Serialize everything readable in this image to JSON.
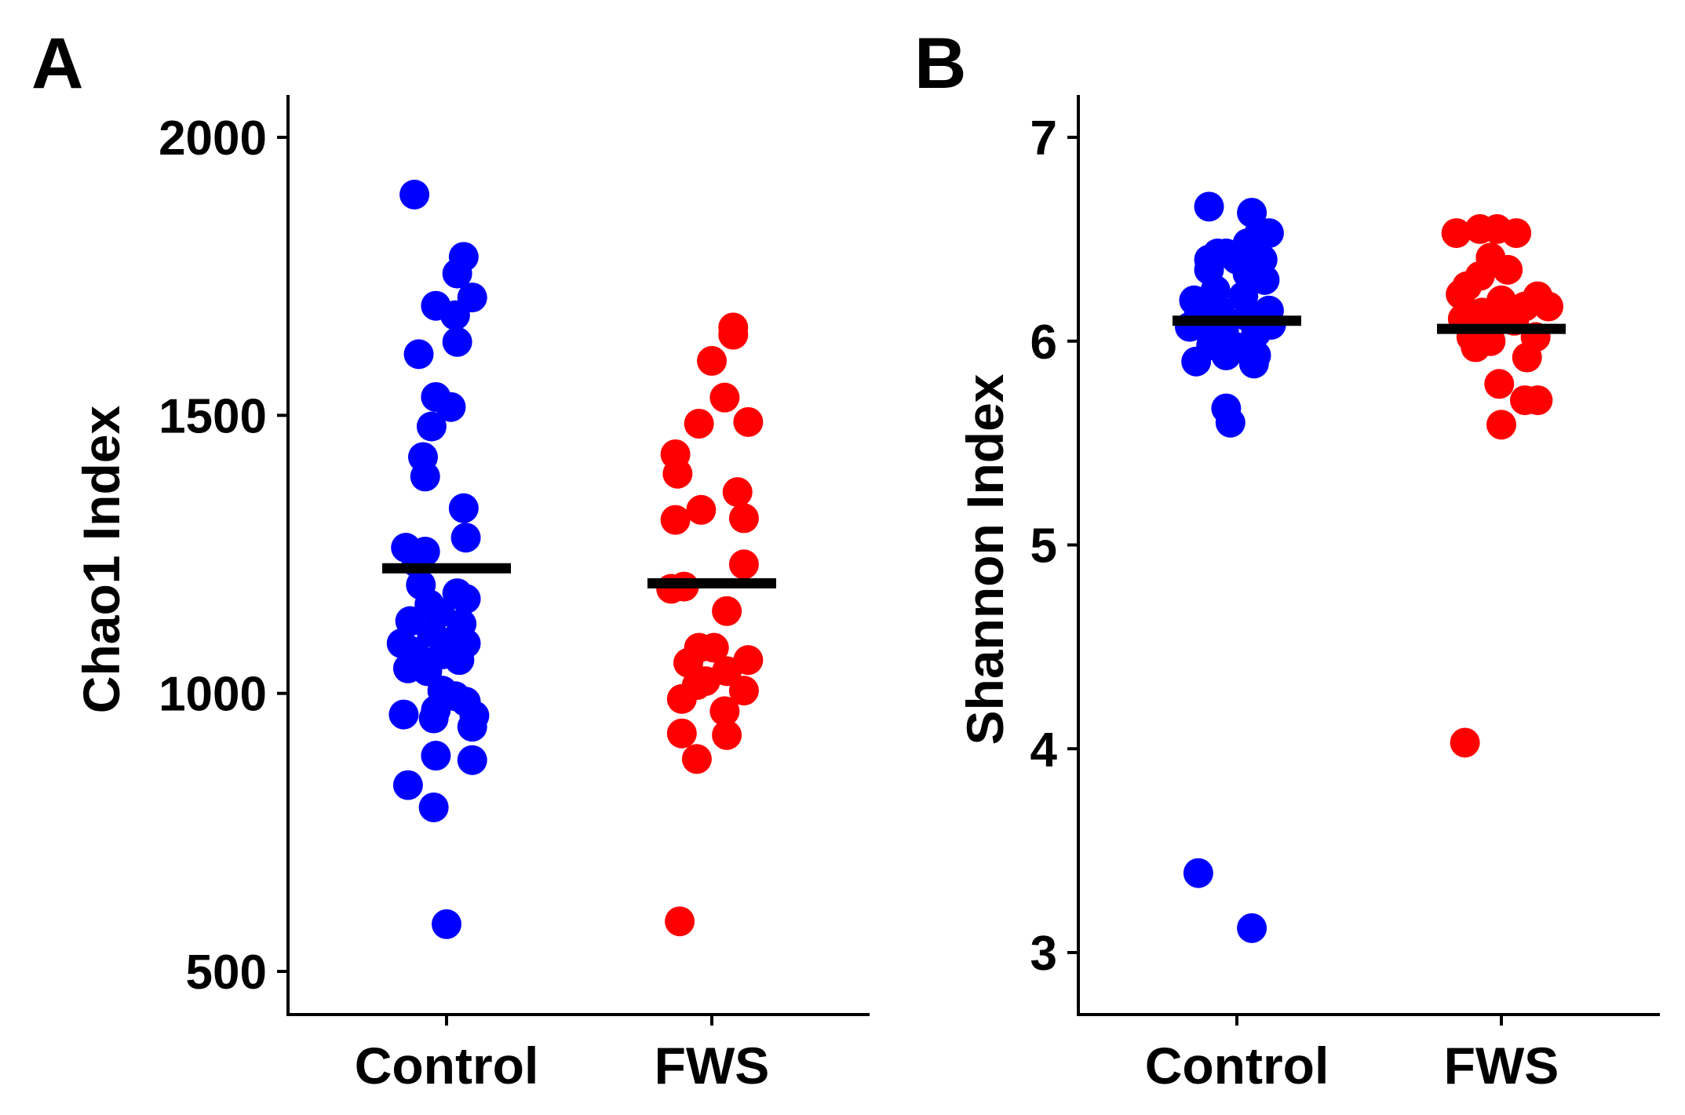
{
  "chart_data": [
    {
      "panel": "A",
      "type": "scatter",
      "subtype": "jitter-strip",
      "ylabel": "Chao1 Index",
      "xlabel": "",
      "categories": [
        "Control",
        "FWS"
      ],
      "ylim": [
        430,
        2070
      ],
      "yticks": [
        500,
        1000,
        1500,
        2000
      ],
      "grid": false,
      "series": [
        {
          "name": "Control",
          "color": "#0000ff",
          "mean": 1225,
          "points": [
            {
              "jitter": -0.15,
              "y": 1897
            },
            {
              "jitter": 0.08,
              "y": 1785
            },
            {
              "jitter": 0.05,
              "y": 1755
            },
            {
              "jitter": 0.12,
              "y": 1712
            },
            {
              "jitter": -0.05,
              "y": 1697
            },
            {
              "jitter": 0.04,
              "y": 1680
            },
            {
              "jitter": 0.05,
              "y": 1632
            },
            {
              "jitter": -0.13,
              "y": 1610
            },
            {
              "jitter": -0.05,
              "y": 1533
            },
            {
              "jitter": 0.02,
              "y": 1515
            },
            {
              "jitter": -0.07,
              "y": 1480
            },
            {
              "jitter": -0.11,
              "y": 1425
            },
            {
              "jitter": -0.1,
              "y": 1390
            },
            {
              "jitter": 0.08,
              "y": 1333
            },
            {
              "jitter": 0.09,
              "y": 1280
            },
            {
              "jitter": -0.19,
              "y": 1262
            },
            {
              "jitter": -0.1,
              "y": 1255
            },
            {
              "jitter": -0.14,
              "y": 1235
            },
            {
              "jitter": -0.12,
              "y": 1195
            },
            {
              "jitter": 0.05,
              "y": 1180
            },
            {
              "jitter": 0.09,
              "y": 1170
            },
            {
              "jitter": -0.08,
              "y": 1160
            },
            {
              "jitter": -0.03,
              "y": 1145
            },
            {
              "jitter": -0.17,
              "y": 1130
            },
            {
              "jitter": 0.07,
              "y": 1125
            },
            {
              "jitter": -0.07,
              "y": 1110
            },
            {
              "jitter": 0.05,
              "y": 1100
            },
            {
              "jitter": -0.21,
              "y": 1090
            },
            {
              "jitter": 0.09,
              "y": 1090
            },
            {
              "jitter": -0.15,
              "y": 1075
            },
            {
              "jitter": -0.02,
              "y": 1070
            },
            {
              "jitter": 0.06,
              "y": 1060
            },
            {
              "jitter": -0.18,
              "y": 1045
            },
            {
              "jitter": -0.09,
              "y": 1040
            },
            {
              "jitter": -0.02,
              "y": 1005
            },
            {
              "jitter": 0.04,
              "y": 995
            },
            {
              "jitter": 0.09,
              "y": 985
            },
            {
              "jitter": -0.05,
              "y": 970
            },
            {
              "jitter": -0.2,
              "y": 962
            },
            {
              "jitter": 0.13,
              "y": 960
            },
            {
              "jitter": -0.06,
              "y": 955
            },
            {
              "jitter": 0.12,
              "y": 940
            },
            {
              "jitter": -0.05,
              "y": 888
            },
            {
              "jitter": 0.12,
              "y": 880
            },
            {
              "jitter": -0.18,
              "y": 835
            },
            {
              "jitter": -0.06,
              "y": 795
            },
            {
              "jitter": 0.0,
              "y": 585
            }
          ]
        },
        {
          "name": "FWS",
          "color": "#ff0000",
          "mean": 1198,
          "points": [
            {
              "jitter": 0.1,
              "y": 1658
            },
            {
              "jitter": 0.1,
              "y": 1645
            },
            {
              "jitter": 0.0,
              "y": 1598
            },
            {
              "jitter": 0.06,
              "y": 1532
            },
            {
              "jitter": -0.06,
              "y": 1485
            },
            {
              "jitter": 0.17,
              "y": 1488
            },
            {
              "jitter": -0.17,
              "y": 1430
            },
            {
              "jitter": -0.16,
              "y": 1395
            },
            {
              "jitter": 0.12,
              "y": 1362
            },
            {
              "jitter": -0.05,
              "y": 1330
            },
            {
              "jitter": 0.15,
              "y": 1315
            },
            {
              "jitter": -0.17,
              "y": 1312
            },
            {
              "jitter": 0.15,
              "y": 1232
            },
            {
              "jitter": -0.13,
              "y": 1192
            },
            {
              "jitter": -0.19,
              "y": 1188
            },
            {
              "jitter": 0.07,
              "y": 1148
            },
            {
              "jitter": -0.06,
              "y": 1082
            },
            {
              "jitter": 0.01,
              "y": 1082
            },
            {
              "jitter": 0.17,
              "y": 1060
            },
            {
              "jitter": -0.11,
              "y": 1055
            },
            {
              "jitter": 0.07,
              "y": 1040
            },
            {
              "jitter": -0.03,
              "y": 1022
            },
            {
              "jitter": -0.07,
              "y": 1015
            },
            {
              "jitter": 0.15,
              "y": 1005
            },
            {
              "jitter": -0.14,
              "y": 990
            },
            {
              "jitter": 0.06,
              "y": 968
            },
            {
              "jitter": -0.14,
              "y": 928
            },
            {
              "jitter": 0.07,
              "y": 925
            },
            {
              "jitter": -0.07,
              "y": 882
            },
            {
              "jitter": -0.15,
              "y": 590
            }
          ]
        }
      ]
    },
    {
      "panel": "B",
      "type": "scatter",
      "subtype": "jitter-strip",
      "ylabel": "Shannon Index",
      "xlabel": "",
      "categories": [
        "Control",
        "FWS"
      ],
      "ylim": [
        2.7,
        7.2
      ],
      "yticks": [
        3,
        4,
        5,
        6,
        7
      ],
      "grid": false,
      "series": [
        {
          "name": "Control",
          "color": "#0000ff",
          "mean": 6.1,
          "points": [
            {
              "jitter": -0.13,
              "y": 6.66
            },
            {
              "jitter": 0.07,
              "y": 6.63
            },
            {
              "jitter": 0.15,
              "y": 6.53
            },
            {
              "jitter": 0.1,
              "y": 6.52
            },
            {
              "jitter": 0.05,
              "y": 6.48
            },
            {
              "jitter": -0.05,
              "y": 6.43
            },
            {
              "jitter": -0.09,
              "y": 6.43
            },
            {
              "jitter": -0.13,
              "y": 6.4
            },
            {
              "jitter": 0.12,
              "y": 6.4
            },
            {
              "jitter": 0.0,
              "y": 6.4
            },
            {
              "jitter": -0.13,
              "y": 6.35
            },
            {
              "jitter": 0.05,
              "y": 6.33
            },
            {
              "jitter": 0.13,
              "y": 6.3
            },
            {
              "jitter": -0.1,
              "y": 6.25
            },
            {
              "jitter": 0.03,
              "y": 6.22
            },
            {
              "jitter": -0.2,
              "y": 6.2
            },
            {
              "jitter": 0.15,
              "y": 6.15
            },
            {
              "jitter": -0.08,
              "y": 6.15
            },
            {
              "jitter": -0.18,
              "y": 6.12
            },
            {
              "jitter": 0.05,
              "y": 6.12
            },
            {
              "jitter": 0.12,
              "y": 6.1
            },
            {
              "jitter": -0.14,
              "y": 6.08
            },
            {
              "jitter": -0.22,
              "y": 6.07
            },
            {
              "jitter": 0.16,
              "y": 6.08
            },
            {
              "jitter": -0.06,
              "y": 6.05
            },
            {
              "jitter": 0.09,
              "y": 6.04
            },
            {
              "jitter": -0.12,
              "y": 5.98
            },
            {
              "jitter": 0.0,
              "y": 5.97
            },
            {
              "jitter": -0.05,
              "y": 5.93
            },
            {
              "jitter": 0.09,
              "y": 5.93
            },
            {
              "jitter": -0.19,
              "y": 5.9
            },
            {
              "jitter": 0.08,
              "y": 5.89
            },
            {
              "jitter": -0.05,
              "y": 5.67
            },
            {
              "jitter": -0.03,
              "y": 5.6
            },
            {
              "jitter": -0.18,
              "y": 3.39
            },
            {
              "jitter": 0.07,
              "y": 3.12
            }
          ]
        },
        {
          "name": "FWS",
          "color": "#ff0000",
          "mean": 6.06,
          "points": [
            {
              "jitter": -0.1,
              "y": 6.55
            },
            {
              "jitter": -0.02,
              "y": 6.55
            },
            {
              "jitter": -0.21,
              "y": 6.53
            },
            {
              "jitter": 0.07,
              "y": 6.53
            },
            {
              "jitter": -0.05,
              "y": 6.41
            },
            {
              "jitter": 0.03,
              "y": 6.35
            },
            {
              "jitter": -0.1,
              "y": 6.32
            },
            {
              "jitter": -0.16,
              "y": 6.27
            },
            {
              "jitter": -0.19,
              "y": 6.23
            },
            {
              "jitter": 0.17,
              "y": 6.22
            },
            {
              "jitter": 0.0,
              "y": 6.2
            },
            {
              "jitter": 0.11,
              "y": 6.17
            },
            {
              "jitter": 0.22,
              "y": 6.17
            },
            {
              "jitter": -0.09,
              "y": 6.14
            },
            {
              "jitter": -0.03,
              "y": 6.12
            },
            {
              "jitter": -0.18,
              "y": 6.11
            },
            {
              "jitter": 0.06,
              "y": 6.1
            },
            {
              "jitter": -0.14,
              "y": 6.02
            },
            {
              "jitter": 0.16,
              "y": 6.02
            },
            {
              "jitter": -0.05,
              "y": 6.0
            },
            {
              "jitter": -0.12,
              "y": 5.97
            },
            {
              "jitter": 0.12,
              "y": 5.92
            },
            {
              "jitter": -0.01,
              "y": 5.79
            },
            {
              "jitter": 0.11,
              "y": 5.71
            },
            {
              "jitter": 0.17,
              "y": 5.71
            },
            {
              "jitter": 0.0,
              "y": 5.59
            },
            {
              "jitter": -0.17,
              "y": 4.03
            }
          ]
        }
      ]
    }
  ]
}
